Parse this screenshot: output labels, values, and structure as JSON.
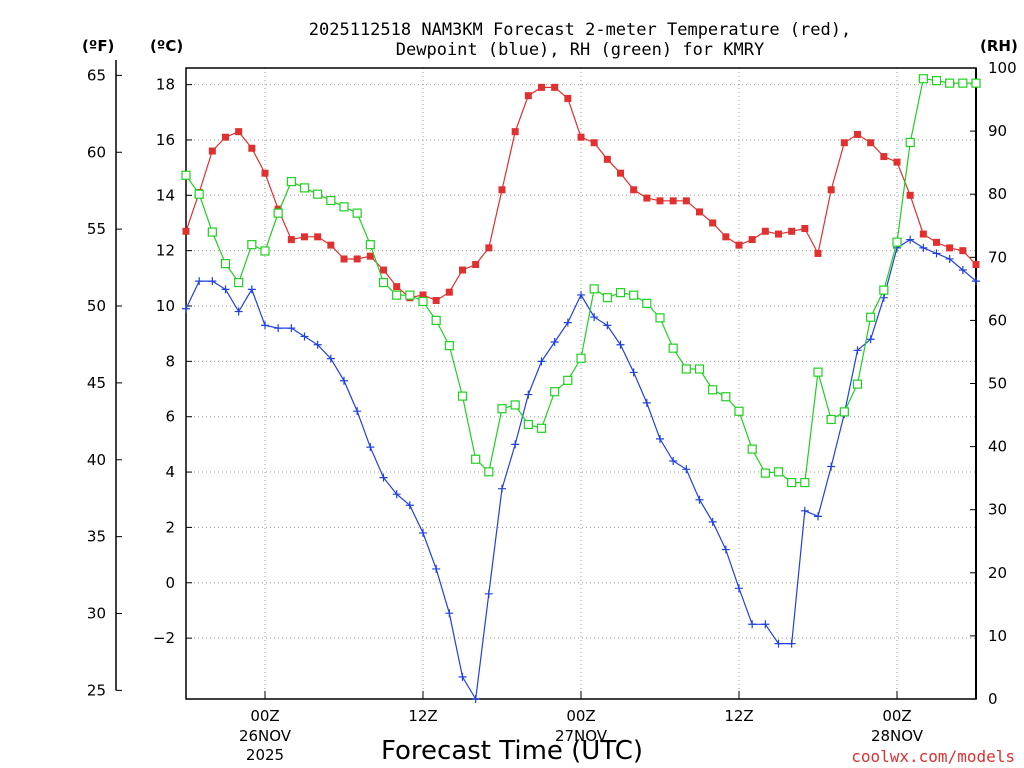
{
  "chart_data": {
    "type": "line",
    "title": "2025112518 NAM3KM Forecast 2-meter Temperature (red),\nDewpoint (blue), RH (green) for KMRY",
    "xlabel": "Forecast Time (UTC)",
    "credit": "coolwx.com/models",
    "units": {
      "left_outer": "(ºF)",
      "left_inner": "(ºC)",
      "right": "(RH)"
    },
    "x_ticks": [
      {
        "hour": 6,
        "label": "00Z",
        "sub": "26NOV",
        "sub2": "2025"
      },
      {
        "hour": 18,
        "label": "12Z",
        "sub": "",
        "sub2": ""
      },
      {
        "hour": 30,
        "label": "00Z",
        "sub": "27NOV",
        "sub2": ""
      },
      {
        "hour": 42,
        "label": "12Z",
        "sub": "",
        "sub2": ""
      },
      {
        "hour": 54,
        "label": "00Z",
        "sub": "28NOV",
        "sub2": ""
      }
    ],
    "xlim": [
      0,
      60
    ],
    "ylim_c": [
      -4.2,
      18.6
    ],
    "yticks_c": [
      -2,
      0,
      2,
      4,
      6,
      8,
      10,
      12,
      14,
      16,
      18
    ],
    "yticks_f": [
      25,
      30,
      35,
      40,
      45,
      50,
      55,
      60,
      65
    ],
    "ylim_rh": [
      0,
      100
    ],
    "yticks_rh": [
      0,
      10,
      20,
      30,
      40,
      50,
      60,
      70,
      80,
      90,
      100
    ],
    "x": [
      0,
      1,
      2,
      3,
      4,
      5,
      6,
      7,
      8,
      9,
      10,
      11,
      12,
      13,
      14,
      15,
      16,
      17,
      18,
      19,
      20,
      21,
      22,
      23,
      24,
      25,
      26,
      27,
      28,
      29,
      30,
      31,
      32,
      33,
      34,
      35,
      36,
      37,
      38,
      39,
      40,
      41,
      42,
      43,
      44,
      45,
      46,
      47,
      48,
      49,
      50,
      51,
      52,
      53,
      54,
      55,
      56,
      57,
      58,
      59,
      60
    ],
    "series": [
      {
        "name": "Temperature (red)",
        "unit": "C",
        "color": "#e03030",
        "marker": "square-filled",
        "values": [
          12.7,
          14.1,
          15.6,
          16.1,
          16.3,
          15.7,
          14.8,
          13.5,
          12.4,
          12.5,
          12.5,
          12.2,
          11.7,
          11.7,
          11.8,
          11.3,
          10.7,
          10.3,
          10.4,
          10.2,
          10.5,
          11.3,
          11.5,
          12.1,
          14.2,
          16.3,
          17.6,
          17.9,
          17.9,
          17.5,
          16.1,
          15.9,
          15.3,
          14.8,
          14.2,
          13.9,
          13.8,
          13.8,
          13.8,
          13.4,
          13.0,
          12.5,
          12.2,
          12.4,
          12.7,
          12.6,
          12.7,
          12.8,
          11.9,
          14.2,
          15.9,
          16.2,
          15.9,
          15.4,
          15.2,
          14.0,
          12.6,
          12.3,
          12.1,
          12.0,
          11.5
        ]
      },
      {
        "name": "Dewpoint (blue)",
        "unit": "C",
        "color": "#2040e0",
        "marker": "plus",
        "values": [
          9.9,
          10.9,
          10.9,
          10.6,
          9.8,
          10.6,
          9.3,
          9.2,
          9.2,
          8.9,
          8.6,
          8.1,
          7.3,
          6.2,
          4.9,
          3.8,
          3.2,
          2.8,
          1.8,
          0.5,
          -1.1,
          -3.4,
          -4.2,
          -0.4,
          3.4,
          5.0,
          6.8,
          8.0,
          8.7,
          9.4,
          10.4,
          9.6,
          9.3,
          8.6,
          7.6,
          6.5,
          5.2,
          4.4,
          4.1,
          3.0,
          2.2,
          1.2,
          -0.2,
          -1.5,
          -1.5,
          -2.2,
          -2.2,
          2.6,
          2.4,
          4.2,
          6.1,
          8.4,
          8.8,
          10.3,
          12.1,
          12.4,
          12.1,
          11.9,
          11.7,
          11.3,
          10.9
        ]
      },
      {
        "name": "RH (green)",
        "unit": "%",
        "color": "#20d020",
        "marker": "square-open",
        "values": [
          83,
          80,
          74,
          69,
          66,
          72,
          71,
          77,
          82,
          81,
          80,
          79,
          78,
          77,
          72,
          66,
          64,
          64,
          63,
          60,
          56,
          48,
          38,
          36,
          46,
          46.6,
          43.5,
          42.9,
          48.7,
          50.5,
          54,
          65,
          63.6,
          64.4,
          64,
          62.7,
          60.4,
          55.6,
          52.3,
          52.3,
          49,
          47.9,
          45.6,
          39.6,
          35.8,
          36,
          34.3,
          34.3,
          51.8,
          44.3,
          45.5,
          49.9,
          60.5,
          64.8,
          72.4,
          88.2,
          98.3,
          98,
          97.6,
          97.6,
          97.6
        ]
      }
    ]
  }
}
